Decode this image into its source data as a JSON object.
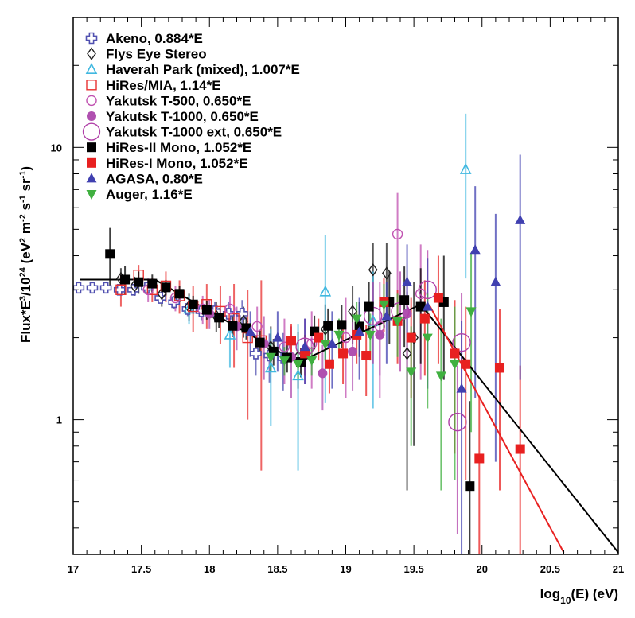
{
  "chart_data": {
    "type": "scatter",
    "title": "",
    "xlabel": "log10(E) (eV)",
    "xlabel_parts": {
      "pre": "log",
      "sub": "10",
      "post": "(E) (eV)"
    },
    "ylabel": "Flux*E^3/10^24 (eV^2 m^-2 s^-1 sr^-1)",
    "xlim": [
      17,
      21
    ],
    "ylim": [
      0.32,
      30
    ],
    "yscale": "log",
    "grid": false,
    "legend_position": "top-left",
    "x_ticks": [
      "17",
      "17.5",
      "18",
      "18.5",
      "19",
      "19.5",
      "20",
      "20.5",
      "21"
    ],
    "x_tick_values": [
      17,
      17.5,
      18,
      18.5,
      19,
      19.5,
      20,
      20.5,
      21
    ],
    "y_ticks": [
      "1",
      "10"
    ],
    "y_tick_values": [
      1,
      10
    ],
    "series": [
      {
        "name": "Akeno, 0.884*E",
        "marker": "cross-open",
        "color": "#5050b0",
        "points": [
          [
            17.04,
            3.05,
            0.05
          ],
          [
            17.14,
            3.05,
            0.05
          ],
          [
            17.24,
            3.05,
            0.05
          ],
          [
            17.34,
            3.0,
            0.08
          ],
          [
            17.44,
            3.0,
            0.1
          ],
          [
            17.54,
            3.05,
            0.1
          ],
          [
            17.64,
            2.8,
            0.12
          ],
          [
            17.74,
            2.7,
            0.15
          ],
          [
            17.84,
            2.55,
            0.15
          ],
          [
            17.94,
            2.5,
            0.18
          ],
          [
            18.04,
            2.5,
            0.2
          ],
          [
            18.14,
            2.45,
            0.25
          ],
          [
            18.24,
            2.45,
            0.3
          ],
          [
            18.34,
            1.75,
            0.3
          ],
          [
            18.44,
            1.72,
            0.35
          ],
          [
            18.54,
            1.68,
            0.4
          ]
        ]
      },
      {
        "name": "Flys Eye Stereo",
        "marker": "diamond-open",
        "color": "#202020",
        "points": [
          [
            17.35,
            3.3,
            0.3
          ],
          [
            17.45,
            3.1,
            0.25
          ],
          [
            17.65,
            2.9,
            0.3
          ],
          [
            17.85,
            2.6,
            0.3
          ],
          [
            18.05,
            2.4,
            0.3
          ],
          [
            18.25,
            2.3,
            0.3
          ],
          [
            18.45,
            1.85,
            0.35
          ],
          [
            18.65,
            1.7,
            0.4
          ],
          [
            18.85,
            2.15,
            0.5
          ],
          [
            19.05,
            2.5,
            0.6
          ],
          [
            19.2,
            3.55,
            0.9
          ],
          [
            19.3,
            3.45,
            1.0
          ],
          [
            19.45,
            1.75,
            1.2
          ],
          [
            19.5,
            2.0,
            1.2
          ]
        ]
      },
      {
        "name": "Haverah Park (mixed), 1.007*E",
        "marker": "triangle-up-open",
        "color": "#40b8e0",
        "points": [
          [
            17.85,
            2.55,
            0.3
          ],
          [
            18.15,
            2.05,
            0.5
          ],
          [
            18.45,
            1.55,
            0.6
          ],
          [
            18.65,
            1.45,
            0.8
          ],
          [
            18.85,
            2.95,
            1.8
          ],
          [
            19.2,
            2.3,
            1.2
          ],
          [
            19.88,
            8.3,
            5.0
          ]
        ]
      },
      {
        "name": "HiRes/MIA, 1.14*E",
        "marker": "square-open",
        "color": "#e83030",
        "points": [
          [
            17.35,
            3.0,
            0.4
          ],
          [
            17.48,
            3.4,
            0.3
          ],
          [
            17.58,
            3.0,
            0.3
          ],
          [
            17.68,
            3.1,
            0.4
          ],
          [
            17.78,
            2.85,
            0.4
          ],
          [
            17.88,
            2.6,
            0.5
          ],
          [
            17.98,
            2.65,
            0.5
          ],
          [
            18.08,
            2.5,
            0.6
          ],
          [
            18.18,
            2.35,
            0.8
          ],
          [
            18.28,
            2.0,
            1.0
          ],
          [
            18.38,
            1.95,
            1.3
          ]
        ]
      },
      {
        "name": "Yakutsk T-500, 0.650*E",
        "marker": "circle-open",
        "color": "#c050b0",
        "points": [
          [
            17.55,
            3.0,
            0.3
          ],
          [
            17.75,
            2.8,
            0.3
          ],
          [
            17.95,
            2.55,
            0.3
          ],
          [
            18.15,
            2.55,
            0.3
          ],
          [
            18.35,
            2.2,
            0.4
          ],
          [
            18.55,
            1.85,
            0.5
          ],
          [
            18.75,
            1.9,
            0.6
          ],
          [
            19.0,
            2.0,
            0.8
          ],
          [
            19.25,
            2.2,
            1.0
          ],
          [
            19.38,
            4.8,
            2.0
          ],
          [
            19.55,
            2.9,
            1.5
          ]
        ]
      },
      {
        "name": "Yakutsk T-1000, 0.650*E",
        "marker": "circle-filled",
        "color": "#b050b0",
        "points": [
          [
            18.0,
            2.45,
            0.3
          ],
          [
            18.2,
            2.2,
            0.4
          ],
          [
            18.4,
            1.9,
            0.5
          ],
          [
            18.6,
            1.7,
            0.5
          ],
          [
            18.83,
            1.48,
            0.4
          ],
          [
            19.05,
            1.78,
            0.5
          ],
          [
            19.25,
            2.05,
            0.6
          ],
          [
            19.45,
            2.45,
            0.9
          ]
        ]
      },
      {
        "name": "Yakutsk T-1000 ext, 0.650*E",
        "marker": "circle-open-large",
        "color": "#b040a8",
        "points": [
          [
            18.7,
            1.85,
            0.5
          ],
          [
            19.2,
            2.4,
            0.8
          ],
          [
            19.4,
            2.5,
            1.0
          ],
          [
            19.6,
            3.0,
            1.2
          ],
          [
            19.85,
            1.92,
            1.0
          ],
          [
            19.82,
            0.98,
            0.6
          ]
        ]
      },
      {
        "name": "HiRes-II Mono, 1.052*E",
        "marker": "square-filled",
        "color": "#000000",
        "points": [
          [
            17.27,
            4.06,
            1.0
          ],
          [
            17.38,
            3.27,
            0.4
          ],
          [
            17.48,
            3.2,
            0.3
          ],
          [
            17.58,
            3.16,
            0.25
          ],
          [
            17.68,
            3.06,
            0.2
          ],
          [
            17.78,
            2.9,
            0.2
          ],
          [
            17.88,
            2.65,
            0.2
          ],
          [
            17.98,
            2.53,
            0.2
          ],
          [
            18.07,
            2.37,
            0.2
          ],
          [
            18.17,
            2.21,
            0.2
          ],
          [
            18.27,
            2.17,
            0.2
          ],
          [
            18.37,
            1.92,
            0.2
          ],
          [
            18.47,
            1.78,
            0.2
          ],
          [
            18.57,
            1.69,
            0.2
          ],
          [
            18.67,
            1.63,
            0.2
          ],
          [
            18.77,
            2.11,
            0.3
          ],
          [
            18.87,
            2.21,
            0.35
          ],
          [
            18.97,
            2.23,
            0.4
          ],
          [
            19.1,
            2.2,
            0.5
          ],
          [
            19.17,
            2.6,
            0.6
          ],
          [
            19.32,
            2.7,
            0.8
          ],
          [
            19.43,
            2.75,
            0.9
          ],
          [
            19.55,
            2.6,
            1.0
          ],
          [
            19.72,
            2.7,
            1.3
          ],
          [
            19.91,
            0.57,
            0.6
          ]
        ]
      },
      {
        "name": "HiRes-I Mono, 1.052*E",
        "marker": "square-filled",
        "color": "#e82020",
        "points": [
          [
            18.6,
            1.95,
            0.3
          ],
          [
            18.7,
            1.75,
            0.3
          ],
          [
            18.8,
            2.0,
            0.35
          ],
          [
            18.88,
            1.6,
            0.35
          ],
          [
            18.98,
            1.75,
            0.4
          ],
          [
            19.08,
            2.05,
            0.45
          ],
          [
            19.15,
            1.72,
            0.5
          ],
          [
            19.28,
            2.7,
            0.6
          ],
          [
            19.38,
            2.3,
            0.7
          ],
          [
            19.48,
            2.0,
            0.8
          ],
          [
            19.58,
            2.35,
            0.9
          ],
          [
            19.68,
            2.8,
            1.2
          ],
          [
            19.8,
            1.75,
            1.0
          ],
          [
            19.88,
            1.6,
            1.0
          ],
          [
            19.98,
            0.72,
            0.5
          ],
          [
            20.13,
            1.55,
            1.0
          ],
          [
            20.28,
            0.78,
            0.8
          ]
        ]
      },
      {
        "name": "AGASA, 0.80*E",
        "marker": "triangle-up-filled",
        "color": "#4040b0",
        "points": [
          [
            18.3,
            2.1,
            0.4
          ],
          [
            18.5,
            2.0,
            0.5
          ],
          [
            18.7,
            1.85,
            0.5
          ],
          [
            18.9,
            1.9,
            0.6
          ],
          [
            19.1,
            2.1,
            0.7
          ],
          [
            19.3,
            2.4,
            0.8
          ],
          [
            19.45,
            3.2,
            1.2
          ],
          [
            19.6,
            2.6,
            1.3
          ],
          [
            19.85,
            1.3,
            1.0
          ],
          [
            19.95,
            4.2,
            3.0
          ],
          [
            20.1,
            3.2,
            2.5
          ],
          [
            20.28,
            5.4,
            4.0
          ]
        ]
      },
      {
        "name": "Auger, 1.16*E",
        "marker": "triangle-down-filled",
        "color": "#40b040",
        "points": [
          [
            18.45,
            1.7,
            0.2
          ],
          [
            18.55,
            1.65,
            0.2
          ],
          [
            18.65,
            1.6,
            0.2
          ],
          [
            18.75,
            1.65,
            0.2
          ],
          [
            18.85,
            1.9,
            0.25
          ],
          [
            18.95,
            2.05,
            0.3
          ],
          [
            19.08,
            2.35,
            0.35
          ],
          [
            19.18,
            2.05,
            0.4
          ],
          [
            19.28,
            2.65,
            0.5
          ],
          [
            19.38,
            2.3,
            0.6
          ],
          [
            19.48,
            1.5,
            0.7
          ],
          [
            19.6,
            2.0,
            0.9
          ],
          [
            19.7,
            1.45,
            0.9
          ],
          [
            19.8,
            1.6,
            1.0
          ],
          [
            19.92,
            2.5,
            1.6
          ]
        ]
      }
    ],
    "fits": [
      {
        "name": "fit-black",
        "color": "#000000",
        "points": [
          [
            17.05,
            3.27
          ],
          [
            17.6,
            3.27
          ],
          [
            18.65,
            1.62
          ],
          [
            19.55,
            2.65
          ],
          [
            21.0,
            0.325
          ]
        ]
      },
      {
        "name": "fit-red",
        "color": "#e82020",
        "points": [
          [
            19.55,
            2.65
          ],
          [
            19.62,
            2.6
          ],
          [
            20.6,
            0.325
          ]
        ]
      }
    ]
  }
}
